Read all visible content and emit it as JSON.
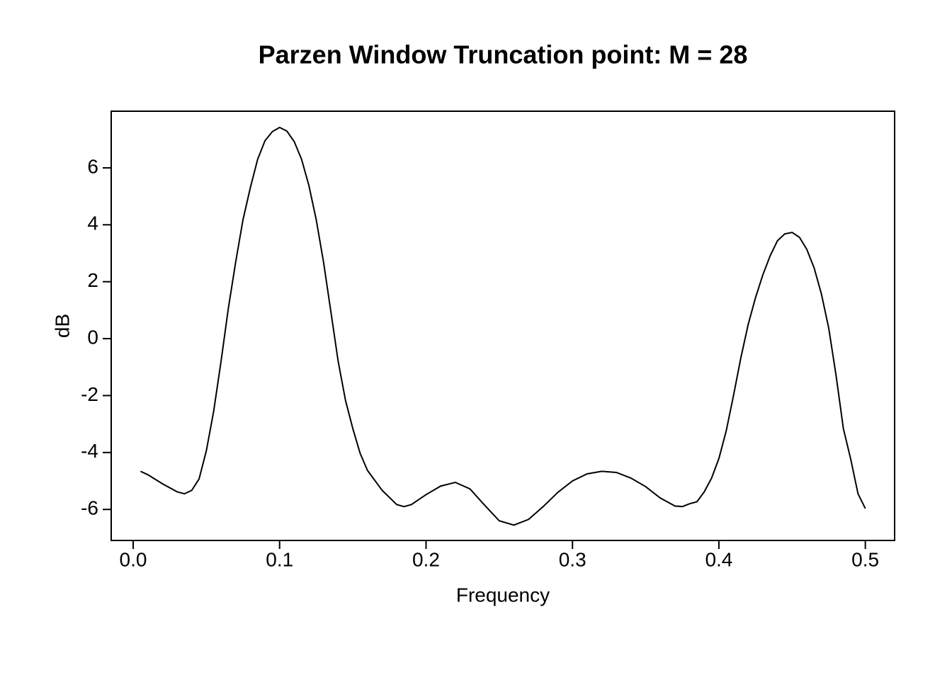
{
  "chart_data": {
    "type": "line",
    "title": "Parzen Window Truncation point: M = 28",
    "xlabel": "Frequency",
    "ylabel": "dB",
    "x": [
      0.005,
      0.01,
      0.02,
      0.03,
      0.035,
      0.04,
      0.045,
      0.05,
      0.055,
      0.06,
      0.065,
      0.07,
      0.075,
      0.08,
      0.085,
      0.09,
      0.095,
      0.1,
      0.105,
      0.11,
      0.115,
      0.12,
      0.125,
      0.13,
      0.135,
      0.14,
      0.145,
      0.15,
      0.155,
      0.16,
      0.17,
      0.18,
      0.185,
      0.19,
      0.2,
      0.21,
      0.22,
      0.23,
      0.24,
      0.25,
      0.26,
      0.27,
      0.28,
      0.29,
      0.3,
      0.31,
      0.32,
      0.33,
      0.34,
      0.35,
      0.36,
      0.37,
      0.375,
      0.38,
      0.385,
      0.39,
      0.395,
      0.4,
      0.405,
      0.41,
      0.415,
      0.42,
      0.425,
      0.43,
      0.435,
      0.44,
      0.445,
      0.45,
      0.455,
      0.46,
      0.465,
      0.47,
      0.475,
      0.48,
      0.485,
      0.49,
      0.495,
      0.5
    ],
    "series": [
      {
        "name": "spectrum",
        "color": "#000000",
        "values": [
          -4.66,
          -4.78,
          -5.1,
          -5.38,
          -5.45,
          -5.33,
          -4.93,
          -3.93,
          -2.54,
          -0.8,
          1.07,
          2.69,
          4.18,
          5.3,
          6.3,
          6.95,
          7.27,
          7.42,
          7.29,
          6.92,
          6.3,
          5.38,
          4.18,
          2.69,
          0.95,
          -0.8,
          -2.17,
          -3.16,
          -4.03,
          -4.63,
          -5.33,
          -5.83,
          -5.9,
          -5.83,
          -5.48,
          -5.18,
          -5.05,
          -5.28,
          -5.85,
          -6.4,
          -6.55,
          -6.35,
          -5.9,
          -5.4,
          -5.0,
          -4.75,
          -4.66,
          -4.7,
          -4.9,
          -5.2,
          -5.6,
          -5.88,
          -5.9,
          -5.8,
          -5.73,
          -5.38,
          -4.9,
          -4.21,
          -3.24,
          -1.99,
          -0.67,
          0.5,
          1.44,
          2.24,
          2.91,
          3.44,
          3.68,
          3.73,
          3.56,
          3.14,
          2.49,
          1.57,
          0.37,
          -1.29,
          -3.16,
          -4.23,
          -5.45,
          -5.97
        ]
      }
    ],
    "xlim": [
      -0.015,
      0.52
    ],
    "xticks": [
      {
        "value": 0,
        "label": "0.0"
      },
      0.1,
      0.2,
      0.3,
      0.4,
      0.5
    ],
    "ylim": [
      -7.09,
      7.99
    ],
    "yticks": [
      -6,
      -4,
      -2,
      0,
      2,
      4,
      6
    ]
  }
}
